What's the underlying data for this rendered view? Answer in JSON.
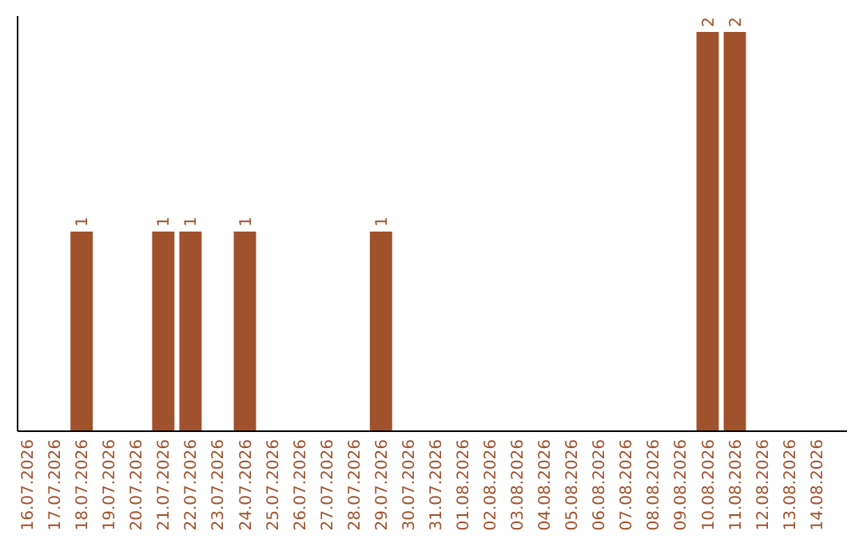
{
  "chart_data": {
    "type": "bar",
    "categories": [
      "16.07.2026",
      "17.07.2026",
      "18.07.2026",
      "19.07.2026",
      "20.07.2026",
      "21.07.2026",
      "22.07.2026",
      "23.07.2026",
      "24.07.2026",
      "25.07.2026",
      "26.07.2026",
      "27.07.2026",
      "28.07.2026",
      "29.07.2026",
      "30.07.2026",
      "31.07.2026",
      "01.08.2026",
      "02.08.2026",
      "03.08.2026",
      "04.08.2026",
      "05.08.2026",
      "06.08.2026",
      "07.08.2026",
      "08.08.2026",
      "09.08.2026",
      "10.08.2026",
      "11.08.2026",
      "12.08.2026",
      "13.08.2026",
      "14.08.2026"
    ],
    "values": [
      0,
      0,
      1,
      0,
      0,
      1,
      1,
      0,
      1,
      0,
      0,
      0,
      0,
      1,
      0,
      0,
      0,
      0,
      0,
      0,
      0,
      0,
      0,
      0,
      0,
      2,
      2,
      0,
      0,
      0
    ],
    "value_labels": [
      null,
      null,
      "1",
      null,
      null,
      "1",
      "1",
      null,
      "1",
      null,
      null,
      null,
      null,
      "1",
      null,
      null,
      null,
      null,
      null,
      null,
      null,
      null,
      null,
      null,
      null,
      "2",
      "2",
      null,
      null,
      null
    ],
    "color": "#a0522d",
    "tick_labels": "x"
  }
}
